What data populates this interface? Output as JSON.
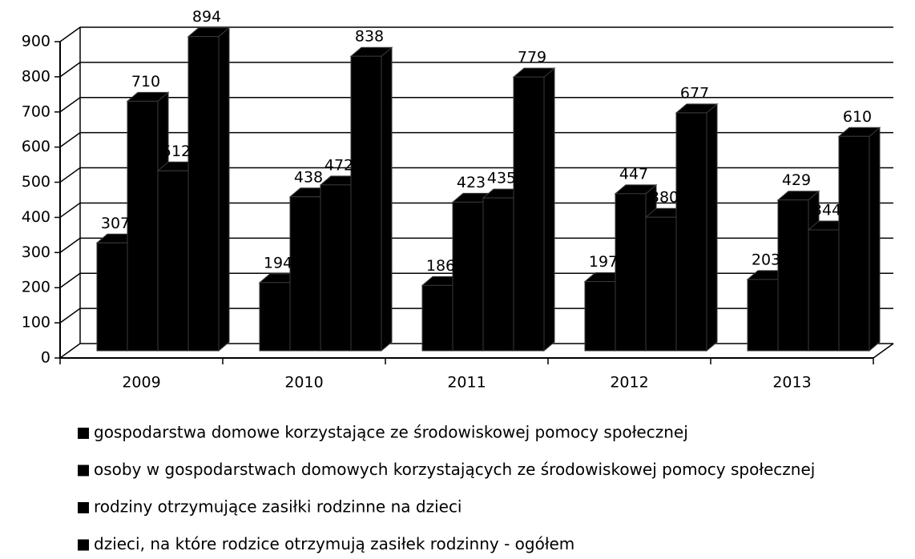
{
  "chart_data": {
    "type": "bar3d",
    "categories": [
      "2009",
      "2010",
      "2011",
      "2012",
      "2013"
    ],
    "series": [
      {
        "name": "gospodarstwa domowe korzystające ze środowiskowej pomocy społecznej",
        "color": "#000000",
        "values": [
          307,
          194,
          186,
          197,
          203
        ]
      },
      {
        "name": "osoby w gospodarstwach domowych korzystających ze środowiskowej pomocy społecznej",
        "color": "#000000",
        "values": [
          710,
          438,
          423,
          447,
          429
        ]
      },
      {
        "name": "rodziny otrzymujące zasiłki rodzinne na dzieci",
        "color": "#000000",
        "values": [
          512,
          472,
          435,
          380,
          344
        ]
      },
      {
        "name": "dzieci, na które rodzice otrzymują zasiłek rodzinny - ogółem",
        "color": "#000000",
        "values": [
          894,
          838,
          779,
          677,
          610
        ]
      }
    ],
    "ylim": [
      0,
      900
    ],
    "yticks": [
      0,
      100,
      200,
      300,
      400,
      500,
      600,
      700,
      800,
      900
    ],
    "grid": true
  }
}
